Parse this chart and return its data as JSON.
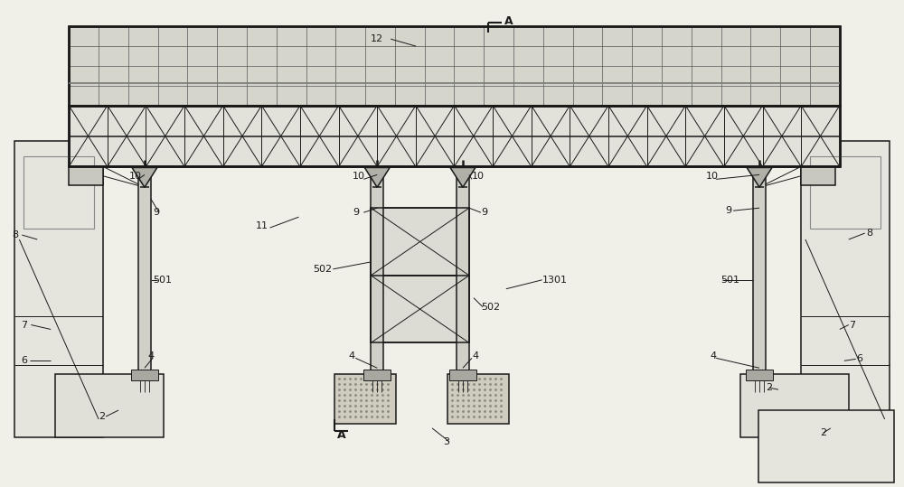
{
  "bg_color": "#f0efe8",
  "line_color": "#1a1a1a",
  "figure_width": 10.0,
  "figure_height": 5.39,
  "dpi": 100
}
